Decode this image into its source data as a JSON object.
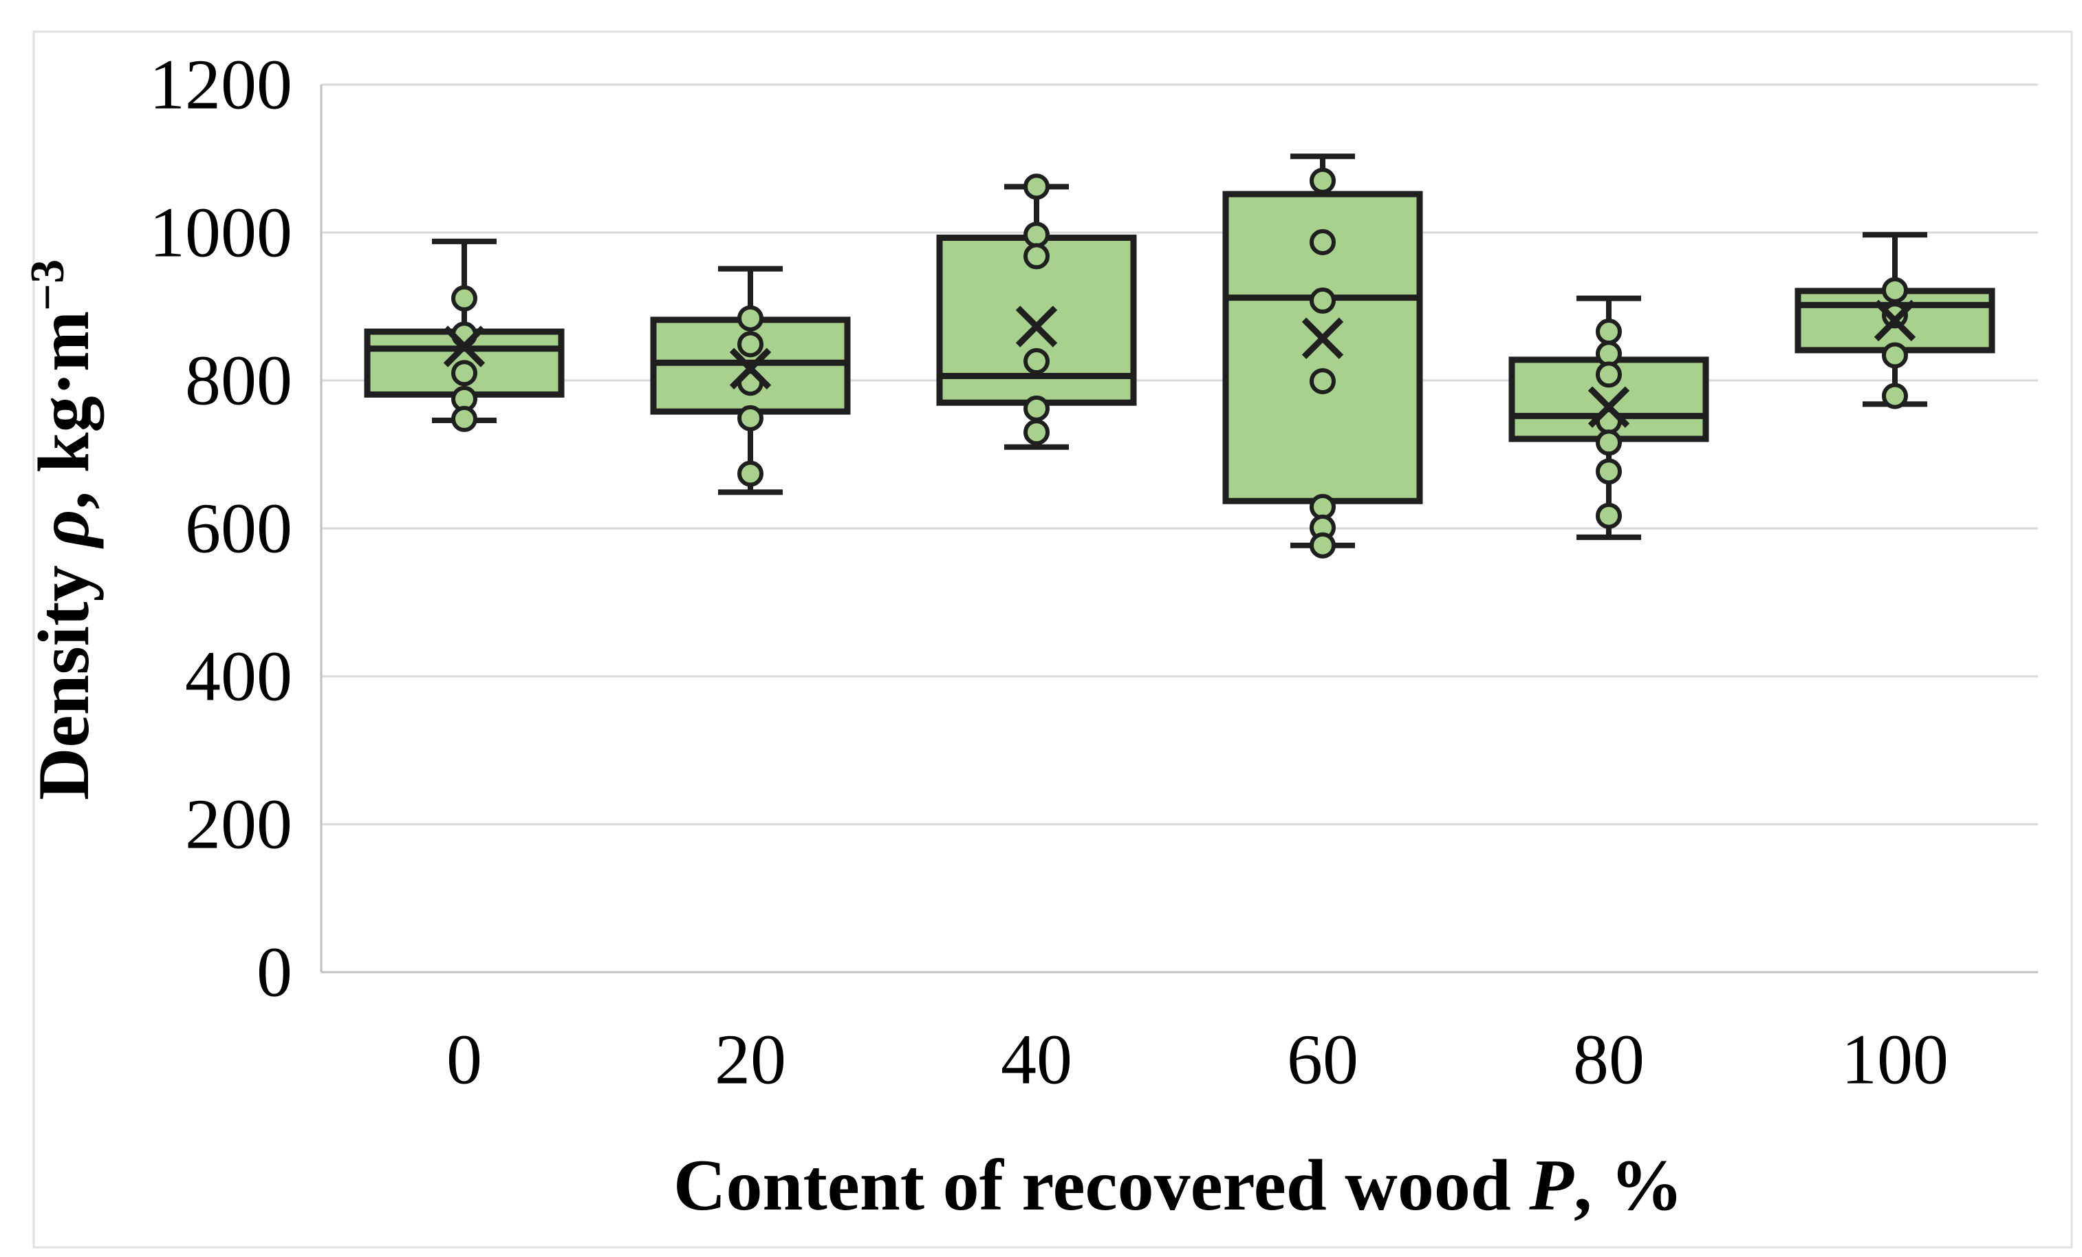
{
  "figure": {
    "background": "#ffffff",
    "border_color": "#e0e0e0"
  },
  "chart_data": {
    "type": "boxplot",
    "title": "",
    "xlabel": "Content of recovered wood P, %",
    "ylabel": "Density ρ, kg·m⁻³",
    "xlabel_parts": {
      "prefix": "Content of recovered wood ",
      "symbol": "P",
      "suffix": ", %"
    },
    "ylabel_parts": {
      "prefix": "Density ",
      "symbol": "ρ",
      "suffix": ", kg·m",
      "superscript": "−3"
    },
    "categories": [
      "0",
      "20",
      "40",
      "60",
      "80",
      "100"
    ],
    "y_axis": {
      "min": 0,
      "max": 1200,
      "step": 200,
      "ticks": [
        0,
        200,
        400,
        600,
        800,
        1000,
        1200
      ]
    },
    "grid": true,
    "legend": false,
    "series": [
      {
        "category": "0",
        "whisker_low": 746,
        "q1": 781,
        "median": 843,
        "q3": 866,
        "whisker_high": 988,
        "mean": 846,
        "points": [
          911,
          862,
          810,
          775,
          748
        ]
      },
      {
        "category": "20",
        "whisker_low": 649,
        "q1": 758,
        "median": 824,
        "q3": 882,
        "whisker_high": 951,
        "mean": 816,
        "points": [
          884,
          849,
          797,
          749,
          674
        ]
      },
      {
        "category": "40",
        "whisker_low": 710,
        "q1": 770,
        "median": 806,
        "q3": 993,
        "whisker_high": 1062,
        "mean": 873,
        "points": [
          1062,
          997,
          968,
          826,
          762,
          730
        ]
      },
      {
        "category": "60",
        "whisker_low": 577,
        "q1": 637,
        "median": 912,
        "q3": 1052,
        "whisker_high": 1103,
        "mean": 857,
        "points": [
          1070,
          987,
          908,
          799,
          629,
          601,
          577
        ]
      },
      {
        "category": "80",
        "whisker_low": 588,
        "q1": 721,
        "median": 752,
        "q3": 828,
        "whisker_high": 911,
        "mean": 764,
        "points": [
          866,
          836,
          808,
          745,
          716,
          677,
          617
        ]
      },
      {
        "category": "100",
        "whisker_low": 768,
        "q1": 841,
        "median": 902,
        "q3": 921,
        "whisker_high": 997,
        "mean": 881,
        "points": [
          922,
          888,
          834,
          779
        ]
      }
    ],
    "style": {
      "box_fill": "#a9d18e",
      "box_stroke": "#1f1f1f",
      "grid_color": "#d9d9d9",
      "axis_color": "#bfbfbf",
      "text_color": "#000000"
    }
  }
}
